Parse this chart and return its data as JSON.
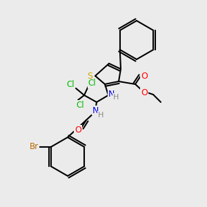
{
  "background_color": "#ebebeb",
  "figsize": [
    3.0,
    3.0
  ],
  "dpi": 100,
  "colors": {
    "C": "#000000",
    "S": "#ccaa00",
    "O": "#ff0000",
    "N": "#0000ee",
    "Cl": "#00bb00",
    "Br": "#bb6600",
    "H_label": "#888888"
  },
  "lw": 1.5
}
